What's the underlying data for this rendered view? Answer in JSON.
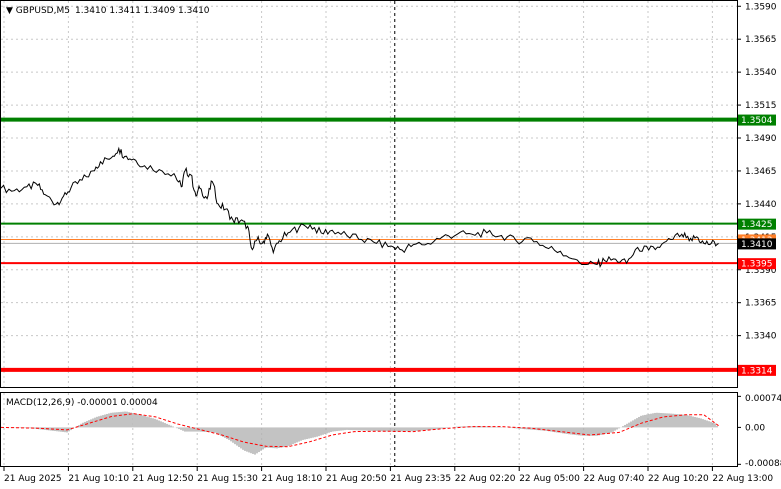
{
  "header": {
    "symbol": "GBPUSD,M5",
    "ohlc": "1.3410 1.3411 1.3409 1.3410"
  },
  "chart_data": [
    {
      "type": "line",
      "title": "GBPUSD,M5  1.3410 1.3411 1.3409 1.3410",
      "ylim": [
        1.3301,
        1.3594
      ],
      "y_ticks": [
        "1.3590",
        "1.3565",
        "1.3540",
        "1.3515",
        "1.3490",
        "1.3465",
        "1.3440",
        "1.3415",
        "1.3390",
        "1.3365",
        "1.3340"
      ],
      "x_ticks": [
        "21 Aug 2025",
        "21 Aug 10:10",
        "21 Aug 12:50",
        "21 Aug 15:30",
        "21 Aug 18:10",
        "21 Aug 20:50",
        "21 Aug 23:35",
        "22 Aug 02:20",
        "22 Aug 05:00",
        "22 Aug 07:40",
        "22 Aug 10:20",
        "22 Aug 13:00"
      ],
      "grid": true,
      "series": [
        {
          "values": [
            [
              0,
              1.3452
            ],
            [
              0.018,
              1.345
            ],
            [
              0.035,
              1.3453
            ],
            [
              0.05,
              1.3454
            ],
            [
              0.06,
              1.3447
            ],
            [
              0.075,
              1.344
            ],
            [
              0.085,
              1.3446
            ],
            [
              0.095,
              1.3452
            ],
            [
              0.11,
              1.3458
            ],
            [
              0.125,
              1.3465
            ],
            [
              0.135,
              1.3472
            ],
            [
              0.15,
              1.3475
            ],
            [
              0.16,
              1.3482
            ],
            [
              0.168,
              1.3476
            ],
            [
              0.18,
              1.3474
            ],
            [
              0.195,
              1.3469
            ],
            [
              0.215,
              1.3466
            ],
            [
              0.235,
              1.3463
            ],
            [
              0.245,
              1.3453
            ],
            [
              0.25,
              1.3465
            ],
            [
              0.258,
              1.3462
            ],
            [
              0.265,
              1.3446
            ],
            [
              0.27,
              1.3452
            ],
            [
              0.28,
              1.3444
            ],
            [
              0.287,
              1.3457
            ],
            [
              0.295,
              1.344
            ],
            [
              0.305,
              1.3436
            ],
            [
              0.315,
              1.3428
            ],
            [
              0.325,
              1.3427
            ],
            [
              0.335,
              1.3423
            ],
            [
              0.34,
              1.3407
            ],
            [
              0.348,
              1.3413
            ],
            [
              0.355,
              1.341
            ],
            [
              0.362,
              1.3417
            ],
            [
              0.37,
              1.3403
            ],
            [
              0.378,
              1.3412
            ],
            [
              0.39,
              1.3418
            ],
            [
              0.405,
              1.3422
            ],
            [
              0.42,
              1.3424
            ],
            [
              0.435,
              1.3418
            ],
            [
              0.45,
              1.342
            ],
            [
              0.47,
              1.3416
            ],
            [
              0.49,
              1.3413
            ],
            [
              0.51,
              1.341
            ],
            [
              0.53,
              1.3408
            ],
            [
              0.545,
              1.3405
            ],
            [
              0.56,
              1.3409
            ],
            [
              0.58,
              1.341
            ],
            [
              0.6,
              1.3415
            ],
            [
              0.62,
              1.3417
            ],
            [
              0.64,
              1.3417
            ],
            [
              0.66,
              1.3418
            ],
            [
              0.68,
              1.3416
            ],
            [
              0.7,
              1.3412
            ],
            [
              0.72,
              1.3414
            ],
            [
              0.74,
              1.3407
            ],
            [
              0.76,
              1.3404
            ],
            [
              0.78,
              1.3398
            ],
            [
              0.795,
              1.3394
            ],
            [
              0.81,
              1.3394
            ],
            [
              0.82,
              1.3397
            ],
            [
              0.835,
              1.3398
            ],
            [
              0.85,
              1.3395
            ],
            [
              0.865,
              1.3407
            ],
            [
              0.88,
              1.3405
            ],
            [
              0.895,
              1.3407
            ],
            [
              0.91,
              1.3413
            ],
            [
              0.925,
              1.3417
            ],
            [
              0.935,
              1.3412
            ],
            [
              0.945,
              1.3415
            ],
            [
              0.955,
              1.341
            ],
            [
              0.965,
              1.341
            ],
            [
              0.975,
              1.341
            ]
          ]
        }
      ],
      "levels": [
        {
          "value": 1.3504,
          "label": "1.3504",
          "color": "#008000",
          "width": 4
        },
        {
          "value": 1.3425,
          "label": "1.3425",
          "color": "#008000",
          "width": 2
        },
        {
          "value": 1.3413,
          "label": "1.3413",
          "color": "#ff7f27",
          "width": 1
        },
        {
          "value": 1.341,
          "label": "1.3410",
          "color": "#000000",
          "width": 0
        },
        {
          "value": 1.3395,
          "label": "1.3395",
          "color": "#ff0000",
          "width": 2
        },
        {
          "value": 1.3314,
          "label": "1.3314",
          "color": "#ff0000",
          "width": 4
        }
      ],
      "vline_x": 0.535
    },
    {
      "type": "bar",
      "title": "MACD(12,26,9) -0.00001 0.00004",
      "ylim": [
        -0.00092,
        0.00082
      ],
      "y_ticks": [
        "0.00074",
        "0.00",
        "-0.00088"
      ],
      "histogram": [
        [
          0.0,
          0.0
        ],
        [
          0.04,
          -2e-05
        ],
        [
          0.07,
          -8e-05
        ],
        [
          0.09,
          -0.00012
        ],
        [
          0.11,
          0.0001
        ],
        [
          0.13,
          0.00025
        ],
        [
          0.15,
          0.00035
        ],
        [
          0.17,
          0.00038
        ],
        [
          0.19,
          0.0003
        ],
        [
          0.21,
          0.0002
        ],
        [
          0.23,
          5e-05
        ],
        [
          0.25,
          -0.0001
        ],
        [
          0.27,
          -0.0001
        ],
        [
          0.29,
          -0.00012
        ],
        [
          0.31,
          -0.0003
        ],
        [
          0.33,
          -0.00055
        ],
        [
          0.345,
          -0.00065
        ],
        [
          0.36,
          -0.00048
        ],
        [
          0.375,
          -0.0005
        ],
        [
          0.39,
          -0.00045
        ],
        [
          0.41,
          -0.0003
        ],
        [
          0.43,
          -0.00022
        ],
        [
          0.45,
          -0.0001
        ],
        [
          0.47,
          -6e-05
        ],
        [
          0.5,
          -8e-05
        ],
        [
          0.53,
          -0.0001
        ],
        [
          0.56,
          -9e-05
        ],
        [
          0.59,
          -5e-05
        ],
        [
          0.62,
          2e-05
        ],
        [
          0.65,
          3e-05
        ],
        [
          0.68,
          1e-05
        ],
        [
          0.71,
          -4e-05
        ],
        [
          0.74,
          -8e-05
        ],
        [
          0.77,
          -0.00016
        ],
        [
          0.79,
          -0.0002
        ],
        [
          0.81,
          -0.0002
        ],
        [
          0.83,
          -0.00012
        ],
        [
          0.85,
          8e-05
        ],
        [
          0.87,
          0.00028
        ],
        [
          0.89,
          0.00035
        ],
        [
          0.91,
          0.00033
        ],
        [
          0.93,
          0.0003
        ],
        [
          0.95,
          0.00022
        ],
        [
          0.97,
          0.0001
        ],
        [
          0.975,
          -1e-05
        ]
      ],
      "signal": [
        [
          0.0,
          0.0
        ],
        [
          0.05,
          -2e-05
        ],
        [
          0.09,
          -6e-05
        ],
        [
          0.12,
          0.0001
        ],
        [
          0.15,
          0.00026
        ],
        [
          0.18,
          0.00033
        ],
        [
          0.21,
          0.00025
        ],
        [
          0.24,
          8e-05
        ],
        [
          0.27,
          -5e-05
        ],
        [
          0.3,
          -0.00018
        ],
        [
          0.33,
          -0.00035
        ],
        [
          0.36,
          -0.00045
        ],
        [
          0.39,
          -0.00046
        ],
        [
          0.42,
          -0.00034
        ],
        [
          0.45,
          -0.00018
        ],
        [
          0.48,
          -0.0001
        ],
        [
          0.52,
          -9e-05
        ],
        [
          0.56,
          -0.0001
        ],
        [
          0.6,
          -3e-05
        ],
        [
          0.64,
          2e-05
        ],
        [
          0.68,
          2e-05
        ],
        [
          0.72,
          -2e-05
        ],
        [
          0.76,
          -0.0001
        ],
        [
          0.8,
          -0.00018
        ],
        [
          0.84,
          -0.00012
        ],
        [
          0.87,
          0.0001
        ],
        [
          0.9,
          0.00025
        ],
        [
          0.93,
          0.0003
        ],
        [
          0.955,
          0.0003
        ],
        [
          0.975,
          4e-05
        ]
      ]
    }
  ]
}
